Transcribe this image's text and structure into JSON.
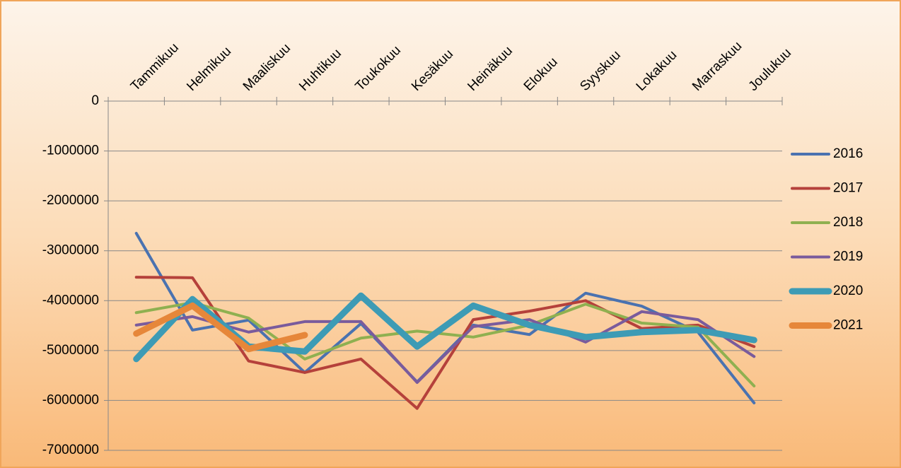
{
  "chart_data": {
    "type": "line",
    "categories": [
      "Tammikuu",
      "Helmikuu",
      "Maaliskuu",
      "Huhtikuu",
      "Toukokuu",
      "Kesäkuu",
      "Heinäkuu",
      "Elokuu",
      "Syyskuu",
      "Lokakuu",
      "Marraskuu",
      "Joulukuu"
    ],
    "series": [
      {
        "name": "2016",
        "color": "#4a72b0",
        "width": 4,
        "values": [
          -2650000,
          -4590000,
          -4390000,
          -5440000,
          -4460000,
          -5630000,
          -4490000,
          -4680000,
          -3850000,
          -4110000,
          -4630000,
          -6050000
        ]
      },
      {
        "name": "2017",
        "color": "#b5413b",
        "width": 4,
        "values": [
          -3530000,
          -3540000,
          -5210000,
          -5440000,
          -5170000,
          -6160000,
          -4380000,
          -4210000,
          -4000000,
          -4560000,
          -4490000,
          -4920000
        ]
      },
      {
        "name": "2018",
        "color": "#8fb050",
        "width": 4,
        "values": [
          -4240000,
          -4040000,
          -4350000,
          -5170000,
          -4750000,
          -4610000,
          -4730000,
          -4490000,
          -4070000,
          -4450000,
          -4530000,
          -5710000
        ]
      },
      {
        "name": "2019",
        "color": "#7a5b9c",
        "width": 4,
        "values": [
          -4490000,
          -4320000,
          -4630000,
          -4420000,
          -4420000,
          -5640000,
          -4520000,
          -4380000,
          -4830000,
          -4220000,
          -4380000,
          -5120000
        ]
      },
      {
        "name": "2020",
        "color": "#3d9bb5",
        "width": 9,
        "values": [
          -5170000,
          -3970000,
          -4920000,
          -5020000,
          -3900000,
          -4920000,
          -4100000,
          -4490000,
          -4730000,
          -4630000,
          -4590000,
          -4790000
        ]
      },
      {
        "name": "2021",
        "color": "#e6873a",
        "width": 9,
        "values": [
          -4660000,
          -4100000,
          -4970000,
          -4690000,
          null,
          null,
          null,
          null,
          null,
          null,
          null,
          null
        ]
      }
    ],
    "ylim": [
      -7000000,
      0
    ],
    "yticks": [
      0,
      -1000000,
      -2000000,
      -3000000,
      -4000000,
      -5000000,
      -6000000,
      -7000000
    ],
    "grid": true,
    "legend": "right"
  }
}
